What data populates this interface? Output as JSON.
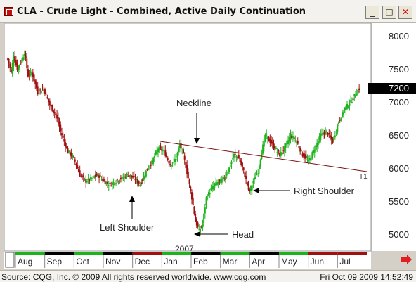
{
  "window": {
    "title": "CLA - Crude Light - Combined, Active Daily Continuation"
  },
  "controls": {
    "minimize": "_",
    "maximize": "□",
    "close": "✕"
  },
  "status": {
    "left": "Source: CQG, Inc. © 2009 All rights reserved worldwide. www.cqg.com",
    "right": "Fri Oct 09 2009 14:52:49"
  },
  "colors": {
    "up": "#1db31d",
    "down": "#a01010",
    "neckline": "#7a1010",
    "background": "#ffffff"
  },
  "chart_data": {
    "type": "candlestick",
    "ylim": [
      4800,
      8200
    ],
    "y_ticks": [
      "8000",
      "7500",
      "7000",
      "6500",
      "6000",
      "5500",
      "5000"
    ],
    "last_price": "7200",
    "months": [
      "Aug",
      "Sep",
      "Oct",
      "Nov",
      "Dec",
      "Jan",
      "Feb",
      "Mar",
      "Apr",
      "May",
      "Jun",
      "Jul"
    ],
    "year_label": "2007",
    "trendline_label": "T1",
    "annotations": {
      "neckline": "Neckline",
      "left_shoulder": "Left Shoulder",
      "head": "Head",
      "right_shoulder": "Right Shoulder"
    },
    "price_path": [
      [
        0,
        7650
      ],
      [
        3,
        7450
      ],
      [
        5,
        7700
      ],
      [
        8,
        7500
      ],
      [
        11,
        7600
      ],
      [
        14,
        7750
      ],
      [
        17,
        7400
      ],
      [
        20,
        7450
      ],
      [
        25,
        7150
      ],
      [
        30,
        7200
      ],
      [
        35,
        6950
      ],
      [
        40,
        6800
      ],
      [
        45,
        6500
      ],
      [
        50,
        6250
      ],
      [
        55,
        6150
      ],
      [
        60,
        5900
      ],
      [
        65,
        5800
      ],
      [
        70,
        5850
      ],
      [
        75,
        5900
      ],
      [
        80,
        5800
      ],
      [
        85,
        5750
      ],
      [
        90,
        5800
      ],
      [
        95,
        5850
      ],
      [
        100,
        5900
      ],
      [
        105,
        5850
      ],
      [
        110,
        5750
      ],
      [
        115,
        5950
      ],
      [
        120,
        6100
      ],
      [
        125,
        6300
      ],
      [
        130,
        6250
      ],
      [
        135,
        6050
      ],
      [
        140,
        6150
      ],
      [
        143,
        6350
      ],
      [
        146,
        6200
      ],
      [
        150,
        5850
      ],
      [
        153,
        5550
      ],
      [
        156,
        5200
      ],
      [
        159,
        5050
      ],
      [
        162,
        5150
      ],
      [
        165,
        5550
      ],
      [
        168,
        5650
      ],
      [
        172,
        5750
      ],
      [
        176,
        5800
      ],
      [
        180,
        5850
      ],
      [
        184,
        6000
      ],
      [
        188,
        6200
      ],
      [
        192,
        6150
      ],
      [
        196,
        5950
      ],
      [
        199,
        5750
      ],
      [
        201,
        5650
      ],
      [
        204,
        5800
      ],
      [
        208,
        5950
      ],
      [
        211,
        6250
      ],
      [
        214,
        6500
      ],
      [
        218,
        6400
      ],
      [
        222,
        6300
      ],
      [
        226,
        6200
      ],
      [
        230,
        6300
      ],
      [
        235,
        6500
      ],
      [
        240,
        6400
      ],
      [
        245,
        6200
      ],
      [
        250,
        6100
      ],
      [
        255,
        6300
      ],
      [
        260,
        6500
      ],
      [
        265,
        6550
      ],
      [
        270,
        6400
      ],
      [
        275,
        6700
      ],
      [
        280,
        6900
      ],
      [
        285,
        7000
      ],
      [
        290,
        7150
      ],
      [
        292,
        7200
      ]
    ]
  }
}
